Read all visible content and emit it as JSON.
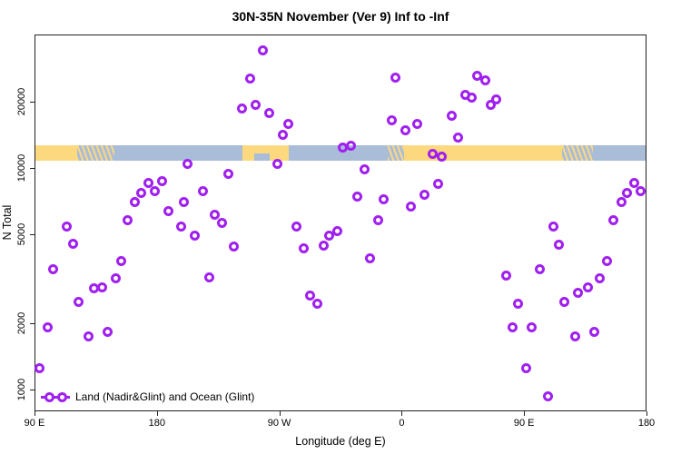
{
  "chart_data": {
    "type": "scatter",
    "title": "30N-35N November (Ver 9)   Inf to -Inf",
    "xlabel": "Longitude (deg E)",
    "ylabel": "N Total",
    "legend": "Land (Nadir&Glint) and Ocean (Glint)",
    "legend_note": "magenta open circles joined symbol",
    "xlim": [
      90,
      540
    ],
    "ylim": [
      800,
      40000
    ],
    "y_scale": "log",
    "grid": false,
    "x_ticks": [
      {
        "lon": 90,
        "label": "90 E"
      },
      {
        "lon": 180,
        "label": "180"
      },
      {
        "lon": 270,
        "label": "90 W"
      },
      {
        "lon": 360,
        "label": "0"
      },
      {
        "lon": 450,
        "label": "90 E"
      },
      {
        "lon": 540,
        "label": "180"
      }
    ],
    "y_ticks": [
      {
        "n": 1000,
        "label": "1000"
      },
      {
        "n": 2000,
        "label": "2000"
      },
      {
        "n": 5000,
        "label": "5000"
      },
      {
        "n": 10000,
        "label": "10000"
      },
      {
        "n": 20000,
        "label": "20000"
      }
    ],
    "colors": {
      "point": "#A020F0",
      "ocean": "#A9BCD8",
      "land": "#FCD87F"
    },
    "map_band": {
      "description": "land/ocean strip for 30N-35N drawn across the plot just above N=10000",
      "n_bottom": 10900,
      "n_top": 12650,
      "segments": [
        {
          "type": "land",
          "from": 90,
          "to": 121
        },
        {
          "type": "mixed",
          "from": 121,
          "to": 148
        },
        {
          "type": "land",
          "from": 242,
          "to": 276
        },
        {
          "type": "mixed",
          "from": 349,
          "to": 361
        },
        {
          "type": "land",
          "from": 361,
          "to": 477
        },
        {
          "type": "mixed",
          "from": 477,
          "to": 500
        }
      ],
      "ocean_notches": [
        {
          "from": 251,
          "to": 262
        }
      ]
    },
    "points": [
      [
        257,
        34400
      ],
      [
        248,
        25500
      ],
      [
        242,
        18800
      ],
      [
        252,
        19400
      ],
      [
        262,
        17800
      ],
      [
        276,
        16000
      ],
      [
        272,
        14300
      ],
      [
        355,
        25900
      ],
      [
        352,
        16500
      ],
      [
        362,
        15000
      ],
      [
        371,
        15900
      ],
      [
        316,
        12500
      ],
      [
        322,
        12700
      ],
      [
        382,
        11700
      ],
      [
        389,
        11400
      ],
      [
        415,
        26400
      ],
      [
        421,
        25200
      ],
      [
        406,
        21500
      ],
      [
        411,
        20900
      ],
      [
        429,
        20500
      ],
      [
        425,
        19400
      ],
      [
        396,
        17300
      ],
      [
        401,
        13900
      ],
      [
        202,
        10500
      ],
      [
        232,
        9450
      ],
      [
        173,
        8600
      ],
      [
        183,
        8770
      ],
      [
        168,
        7820
      ],
      [
        178,
        7900
      ],
      [
        163,
        7110
      ],
      [
        199,
        7110
      ],
      [
        213,
        7900
      ],
      [
        188,
        6470
      ],
      [
        197,
        5470
      ],
      [
        158,
        5890
      ],
      [
        222,
        6180
      ],
      [
        227,
        5680
      ],
      [
        207,
        4980
      ],
      [
        113,
        5470
      ],
      [
        118,
        4570
      ],
      [
        236,
        4450
      ],
      [
        153,
        3820
      ],
      [
        103,
        3510
      ],
      [
        149,
        3220
      ],
      [
        218,
        3250
      ],
      [
        268,
        10500
      ],
      [
        332,
        10000
      ],
      [
        327,
        7530
      ],
      [
        346,
        7260
      ],
      [
        386,
        8520
      ],
      [
        376,
        7670
      ],
      [
        366,
        6730
      ],
      [
        342,
        5890
      ],
      [
        282,
        5470
      ],
      [
        312,
        5260
      ],
      [
        306,
        4980
      ],
      [
        302,
        4490
      ],
      [
        287,
        4360
      ],
      [
        336,
        3960
      ],
      [
        530,
        8600
      ],
      [
        525,
        7820
      ],
      [
        535,
        7900
      ],
      [
        521,
        7110
      ],
      [
        515,
        5890
      ],
      [
        471,
        5470
      ],
      [
        475,
        4530
      ],
      [
        510,
        3820
      ],
      [
        436,
        3310
      ],
      [
        461,
        3510
      ],
      [
        505,
        3220
      ],
      [
        122,
        2520
      ],
      [
        133,
        2880
      ],
      [
        139,
        2930
      ],
      [
        99,
        1920
      ],
      [
        129,
        1750
      ],
      [
        143,
        1830
      ],
      [
        93,
        1265
      ],
      [
        292,
        2670
      ],
      [
        297,
        2470
      ],
      [
        445,
        2470
      ],
      [
        479,
        2520
      ],
      [
        489,
        2770
      ],
      [
        496,
        2930
      ],
      [
        441,
        1920
      ],
      [
        455,
        1920
      ],
      [
        487,
        1760
      ],
      [
        501,
        1830
      ],
      [
        451,
        1265
      ],
      [
        467,
        944
      ]
    ]
  }
}
